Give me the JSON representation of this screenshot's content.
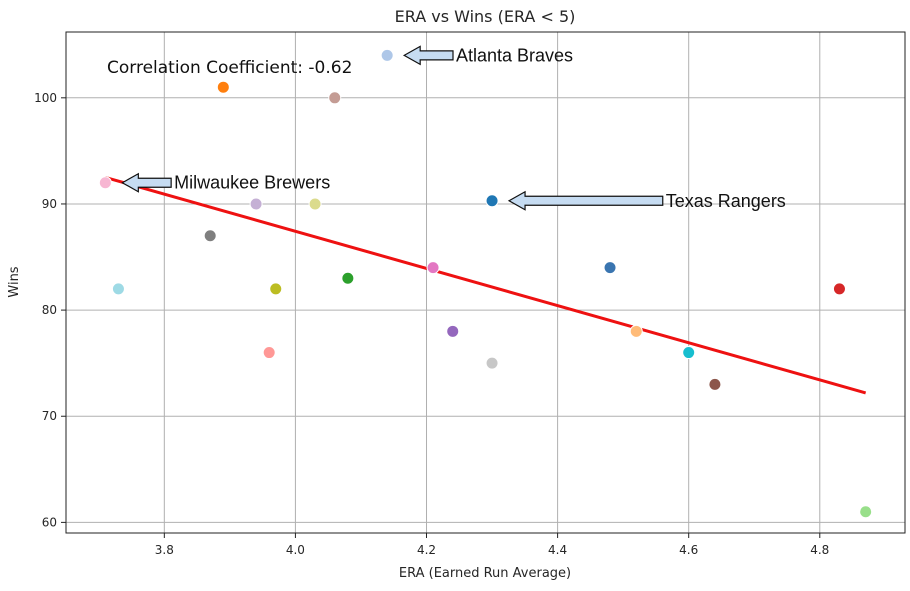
{
  "chart_data": {
    "type": "scatter",
    "title": "ERA vs Wins (ERA < 5)",
    "xlabel": "ERA (Earned Run Average)",
    "ylabel": "Wins",
    "xlim": [
      3.65,
      4.93
    ],
    "ylim": [
      59,
      106.2
    ],
    "xticks": [
      3.8,
      4.0,
      4.2,
      4.4,
      4.6,
      4.8
    ],
    "yticks": [
      60,
      70,
      80,
      90,
      100
    ],
    "grid": true,
    "points": [
      {
        "x": 3.71,
        "y": 92,
        "color": "#f7b6d2"
      },
      {
        "x": 3.73,
        "y": 82,
        "color": "#9edae5"
      },
      {
        "x": 3.87,
        "y": 87,
        "color": "#7f7f7f"
      },
      {
        "x": 3.89,
        "y": 101,
        "color": "#ff7f0e"
      },
      {
        "x": 3.94,
        "y": 90,
        "color": "#c5b0d5"
      },
      {
        "x": 3.96,
        "y": 76,
        "color": "#ff9896"
      },
      {
        "x": 3.97,
        "y": 82,
        "color": "#bcbd22"
      },
      {
        "x": 4.03,
        "y": 90,
        "color": "#dbdb8d"
      },
      {
        "x": 4.06,
        "y": 100,
        "color": "#c49c94"
      },
      {
        "x": 4.08,
        "y": 83,
        "color": "#2ca02c"
      },
      {
        "x": 4.14,
        "y": 104,
        "color": "#aec7e8"
      },
      {
        "x": 4.21,
        "y": 84,
        "color": "#e377c2"
      },
      {
        "x": 4.24,
        "y": 78,
        "color": "#9467bd"
      },
      {
        "x": 4.3,
        "y": 90.3,
        "color": "#1f77b4"
      },
      {
        "x": 4.3,
        "y": 75,
        "color": "#c7c7c7"
      },
      {
        "x": 4.48,
        "y": 84,
        "color": "#3a75b0"
      },
      {
        "x": 4.52,
        "y": 78,
        "color": "#ffbb78"
      },
      {
        "x": 4.6,
        "y": 76,
        "color": "#17becf"
      },
      {
        "x": 4.64,
        "y": 73,
        "color": "#8c564b"
      },
      {
        "x": 4.83,
        "y": 82,
        "color": "#d62728"
      },
      {
        "x": 4.87,
        "y": 61,
        "color": "#98df8a"
      }
    ],
    "trendline": {
      "x": [
        3.71,
        4.87
      ],
      "y": [
        92.5,
        72.2
      ],
      "color": "#ee1111"
    },
    "correlation_text": "Correlation Coefficient: -0.62",
    "annotations": [
      {
        "text": "Atlanta Braves",
        "point_x": 4.14,
        "point_y": 104,
        "text_x": 4.245,
        "text_y": 104
      },
      {
        "text": "Milwaukee Brewers",
        "point_x": 3.71,
        "point_y": 92,
        "text_x": 3.815,
        "text_y": 92
      },
      {
        "text": "Texas Rangers",
        "point_x": 4.3,
        "point_y": 90.3,
        "text_x": 4.565,
        "text_y": 90.3
      }
    ]
  }
}
